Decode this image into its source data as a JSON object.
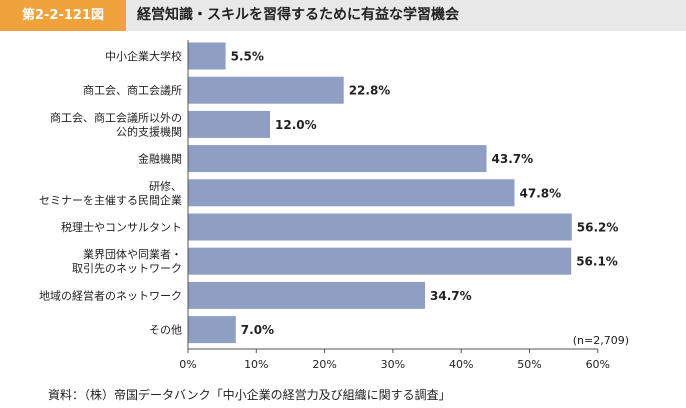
{
  "figure": {
    "label": "第2-2-121図",
    "title": "経営知識・スキルを習得するために有益な学習機会"
  },
  "source": "資料：（株）帝国データバンク「中小企業の経営力及び組織に関する調査」",
  "chart_data": {
    "type": "bar",
    "orientation": "horizontal",
    "categories": [
      [
        "中小企業大学校"
      ],
      [
        "商工会、商工会議所"
      ],
      [
        "商工会、商工会議所以外の",
        "公的支援機関"
      ],
      [
        "金融機関"
      ],
      [
        "研修、",
        "セミナーを主催する民間企業"
      ],
      [
        "税理士やコンサルタント"
      ],
      [
        "業界団体や同業者・",
        "取引先のネットワーク"
      ],
      [
        "地域の経営者のネットワーク"
      ],
      [
        "その他"
      ]
    ],
    "values": [
      5.5,
      22.8,
      12.0,
      43.7,
      47.8,
      56.2,
      56.1,
      34.7,
      7.0
    ],
    "value_labels": [
      "5.5%",
      "22.8%",
      "12.0%",
      "43.7%",
      "47.8%",
      "56.2%",
      "56.1%",
      "34.7%",
      "7.0%"
    ],
    "xlim": [
      0,
      60
    ],
    "xticks": [
      0,
      10,
      20,
      30,
      40,
      50,
      60
    ],
    "xtick_labels": [
      "0%",
      "10%",
      "20%",
      "30%",
      "40%",
      "50%",
      "60%"
    ],
    "note": "(n=2,709)",
    "grid": false,
    "bar_color": "#8e9fc3"
  }
}
